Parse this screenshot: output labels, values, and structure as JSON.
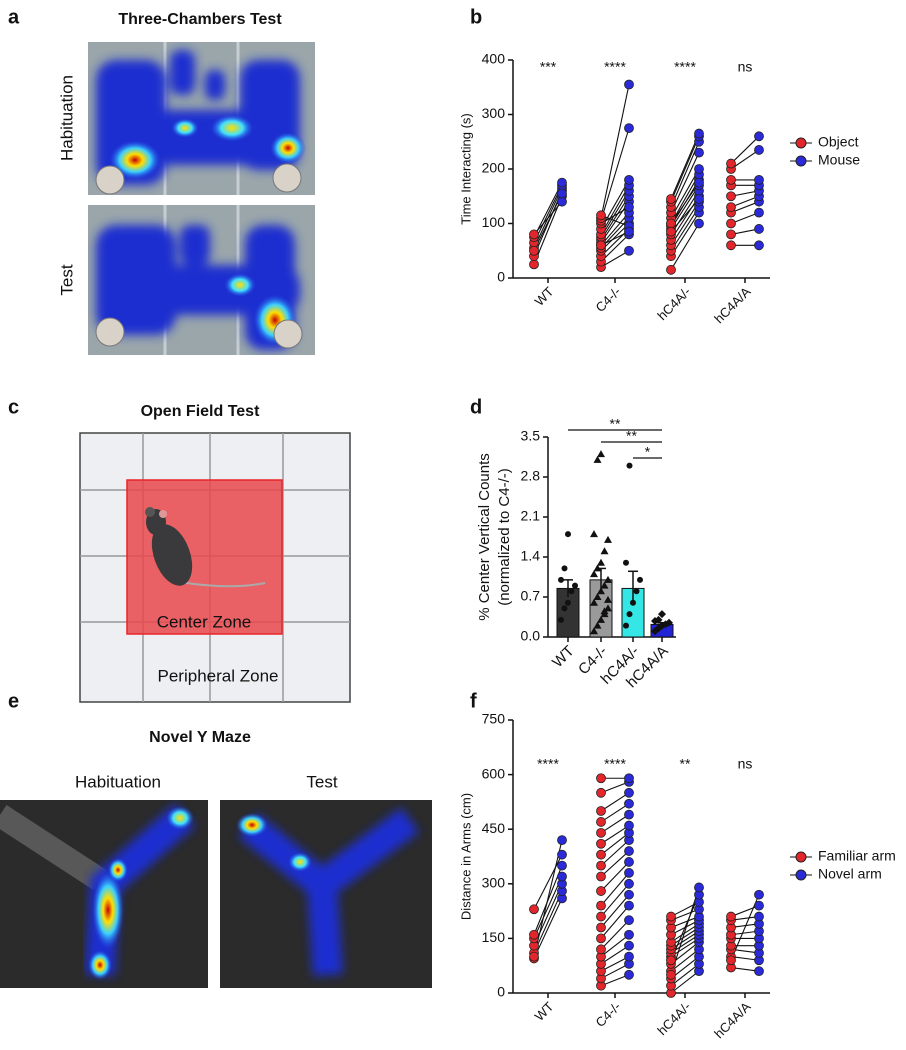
{
  "panels": {
    "a": {
      "letter": "a",
      "title": "Three-Chambers Test",
      "labels": [
        "Habituation",
        "Test"
      ]
    },
    "c": {
      "letter": "c",
      "title": "Open Field Test",
      "labels": [
        "Center Zone",
        "Peripheral Zone"
      ]
    },
    "e": {
      "letter": "e",
      "title": "Novel Y Maze",
      "labels": [
        "Habituation",
        "Test"
      ]
    }
  },
  "chart_data": [
    {
      "letter": "b",
      "type": "paired",
      "ylabel": "Time Interacting (s)",
      "categories": [
        "WT",
        "C4-/-",
        "hC4A/-",
        "hC4A/A"
      ],
      "series": [
        {
          "name": "Object",
          "color": "#e3262b",
          "values": [
            [
              25,
              40,
              55,
              65,
              75,
              80,
              50
            ],
            [
              20,
              30,
              40,
              50,
              55,
              60,
              65,
              70,
              75,
              80,
              90,
              100,
              105,
              110,
              115,
              60
            ],
            [
              15,
              40,
              50,
              60,
              70,
              80,
              90,
              95,
              100,
              110,
              120,
              130,
              140,
              145,
              100,
              85
            ],
            [
              60,
              80,
              100,
              120,
              130,
              150,
              170,
              180,
              200,
              210
            ]
          ]
        },
        {
          "name": "Mouse",
          "color": "#2a2ad8",
          "values": [
            [
              150,
              160,
              165,
              170,
              175,
              140,
              155
            ],
            [
              50,
              80,
              90,
              100,
              110,
              120,
              140,
              150,
              160,
              170,
              180,
              130,
              275,
              355,
              95,
              85
            ],
            [
              100,
              120,
              130,
              140,
              150,
              160,
              170,
              180,
              190,
              200,
              230,
              250,
              260,
              265,
              175,
              145
            ],
            [
              60,
              90,
              120,
              140,
              150,
              160,
              170,
              180,
              235,
              260
            ]
          ]
        }
      ],
      "annotations": [
        "***",
        "****",
        "****",
        "ns"
      ],
      "ylim": [
        0,
        400
      ],
      "yticks": [
        0,
        100,
        200,
        300,
        400
      ]
    },
    {
      "letter": "d",
      "type": "bar",
      "ylabel": [
        "% Center Vertical Counts",
        "(normalized to C4-/-)"
      ],
      "categories": [
        "WT",
        "C4-/-",
        "hC4A/-",
        "hC4A/A"
      ],
      "values": [
        0.85,
        1.0,
        0.85,
        0.22
      ],
      "errors": [
        0.15,
        0.2,
        0.3,
        0.03
      ],
      "colors": [
        "#333333",
        "#9a9a9a",
        "#35e6e6",
        "#2323d6"
      ],
      "markers": [
        "circle",
        "triangle",
        "circle",
        "diamond"
      ],
      "points": [
        [
          0.3,
          0.5,
          0.6,
          0.8,
          0.9,
          1.0,
          1.2,
          1.8
        ],
        [
          0.1,
          0.2,
          0.3,
          0.4,
          0.5,
          0.6,
          0.7,
          0.8,
          0.9,
          1.0,
          1.1,
          1.2,
          1.3,
          1.5,
          1.7,
          1.8,
          3.1,
          3.2,
          0.45,
          0.65
        ],
        [
          0.2,
          0.4,
          0.6,
          0.8,
          1.0,
          1.3,
          3.0
        ],
        [
          0.1,
          0.15,
          0.2,
          0.22,
          0.25,
          0.28,
          0.3,
          0.4
        ]
      ],
      "comparisons": [
        {
          "from": 0,
          "to": 3,
          "label": "**"
        },
        {
          "from": 1,
          "to": 3,
          "label": "**"
        },
        {
          "from": 2,
          "to": 3,
          "label": "*"
        }
      ],
      "ylim": [
        0,
        3.5
      ],
      "yticks": [
        {
          "value": 0,
          "label": "0.0"
        },
        0.7,
        1.4,
        2.1,
        2.8,
        3.5
      ]
    },
    {
      "letter": "f",
      "type": "paired",
      "ylabel": "Distance in Arms (cm)",
      "categories": [
        "WT",
        "C4-/-",
        "hC4A/-",
        "hC4A/A"
      ],
      "series": [
        {
          "name": "Familiar arm",
          "color": "#e3262b",
          "values": [
            [
              95,
              110,
              130,
              150,
              160,
              230,
              100
            ],
            [
              20,
              40,
              60,
              80,
              100,
              120,
              150,
              180,
              210,
              240,
              280,
              320,
              350,
              380,
              410,
              440,
              470,
              500,
              550,
              590
            ],
            [
              0,
              20,
              40,
              60,
              80,
              100,
              110,
              120,
              130,
              140,
              160,
              180,
              200,
              210,
              90,
              50
            ],
            [
              70,
              100,
              120,
              130,
              150,
              160,
              180,
              200,
              210,
              90
            ]
          ]
        },
        {
          "name": "Novel arm",
          "color": "#2a2ad8",
          "values": [
            [
              260,
              280,
              300,
              320,
              350,
              380,
              420
            ],
            [
              50,
              80,
              100,
              130,
              160,
              200,
              240,
              270,
              300,
              330,
              360,
              390,
              420,
              440,
              460,
              490,
              520,
              550,
              580,
              590
            ],
            [
              60,
              80,
              100,
              120,
              140,
              150,
              160,
              170,
              180,
              190,
              200,
              210,
              230,
              250,
              270,
              290
            ],
            [
              60,
              90,
              110,
              130,
              150,
              170,
              190,
              210,
              240,
              270
            ]
          ]
        }
      ],
      "annotations": [
        "****",
        "****",
        "**",
        "ns"
      ],
      "ylim": [
        0,
        750
      ],
      "yticks": [
        0,
        150,
        300,
        450,
        600,
        750
      ]
    }
  ]
}
